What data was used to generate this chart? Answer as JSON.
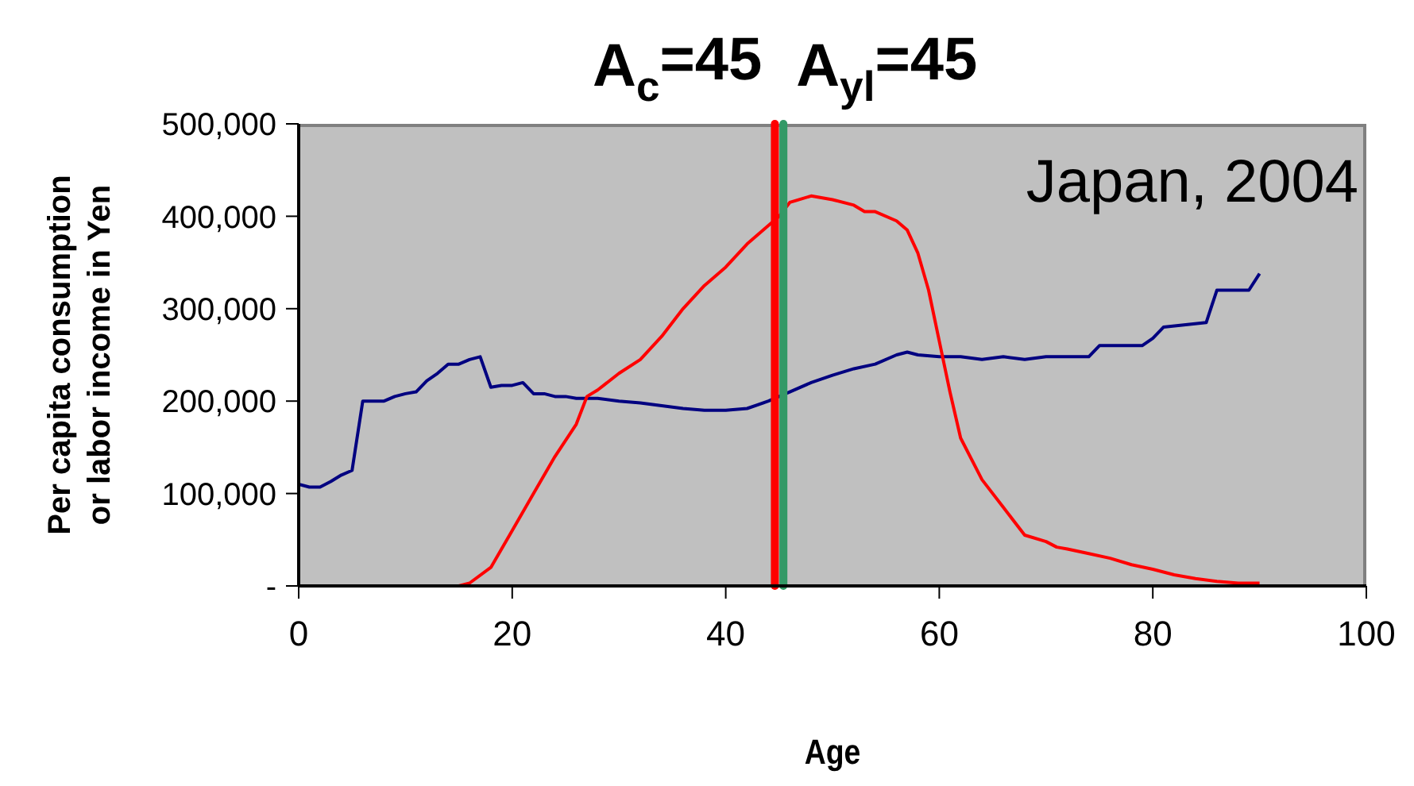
{
  "chart_data": {
    "type": "line",
    "xlabel": "Age",
    "ylabel": "Per capita consumption or labor income in Yen",
    "xlim": [
      0,
      100
    ],
    "xticks": [
      0,
      20,
      40,
      60,
      80,
      100
    ],
    "ylim": [
      0,
      500000
    ],
    "yticks": [
      {
        "value": 0,
        "label": "-"
      },
      {
        "value": 100000,
        "label": "100,000"
      },
      {
        "value": 200000,
        "label": "200,000"
      },
      {
        "value": 300000,
        "label": "300,000"
      },
      {
        "value": 400000,
        "label": "400,000"
      },
      {
        "value": 500000,
        "label": "500,000"
      }
    ],
    "grid": false,
    "marker": "none",
    "line_style": "solid",
    "annotations": [
      "Japan, 2004"
    ],
    "ref_lines": [
      {
        "axis": "x",
        "value": 44.6,
        "label": "A$_{c}$=45",
        "color": "#ff0000"
      },
      {
        "axis": "x",
        "value": 45.4,
        "label": "A$_{yl}$=45",
        "color": "#339966"
      }
    ],
    "series": [
      {
        "color": "#000080",
        "x": [
          0,
          1,
          2,
          3,
          4,
          5,
          6,
          8,
          9,
          10,
          11,
          12,
          13,
          14,
          15,
          16,
          17,
          18,
          19,
          20,
          21,
          22,
          23,
          24,
          25,
          26,
          28,
          30,
          32,
          34,
          36,
          38,
          40,
          42,
          44,
          46,
          48,
          50,
          52,
          54,
          56,
          57,
          58,
          60,
          62,
          64,
          66,
          68,
          70,
          74,
          75,
          79,
          80,
          81,
          85,
          86,
          89,
          90
        ],
        "values": [
          110000,
          107000,
          107000,
          113000,
          120000,
          125000,
          200000,
          200000,
          205000,
          208000,
          210000,
          222000,
          230000,
          240000,
          240000,
          245000,
          248000,
          215000,
          217000,
          217000,
          220000,
          208000,
          208000,
          205000,
          205000,
          203000,
          203000,
          200000,
          198000,
          195000,
          192000,
          190000,
          190000,
          192000,
          200000,
          210000,
          220000,
          228000,
          235000,
          240000,
          250000,
          253000,
          250000,
          248000,
          248000,
          245000,
          248000,
          245000,
          248000,
          248000,
          260000,
          260000,
          268000,
          280000,
          285000,
          320000,
          320000,
          338000
        ]
      },
      {
        "color": "#ff0000",
        "x": [
          15,
          16,
          18,
          20,
          22,
          24,
          26,
          27,
          28,
          30,
          32,
          34,
          36,
          38,
          40,
          42,
          44,
          45,
          46,
          48,
          50,
          52,
          53,
          54,
          56,
          57,
          58,
          59,
          60,
          61,
          62,
          64,
          66,
          68,
          70,
          71,
          72,
          74,
          76,
          78,
          80,
          82,
          84,
          86,
          88,
          90
        ],
        "values": [
          0,
          3000,
          20000,
          60000,
          100000,
          140000,
          175000,
          205000,
          212000,
          230000,
          245000,
          270000,
          300000,
          325000,
          345000,
          370000,
          390000,
          400000,
          415000,
          422000,
          418000,
          412000,
          405000,
          405000,
          395000,
          385000,
          360000,
          320000,
          265000,
          210000,
          160000,
          115000,
          85000,
          55000,
          48000,
          42000,
          40000,
          35000,
          30000,
          23000,
          18000,
          12000,
          8000,
          5000,
          3000,
          3000
        ]
      }
    ]
  }
}
